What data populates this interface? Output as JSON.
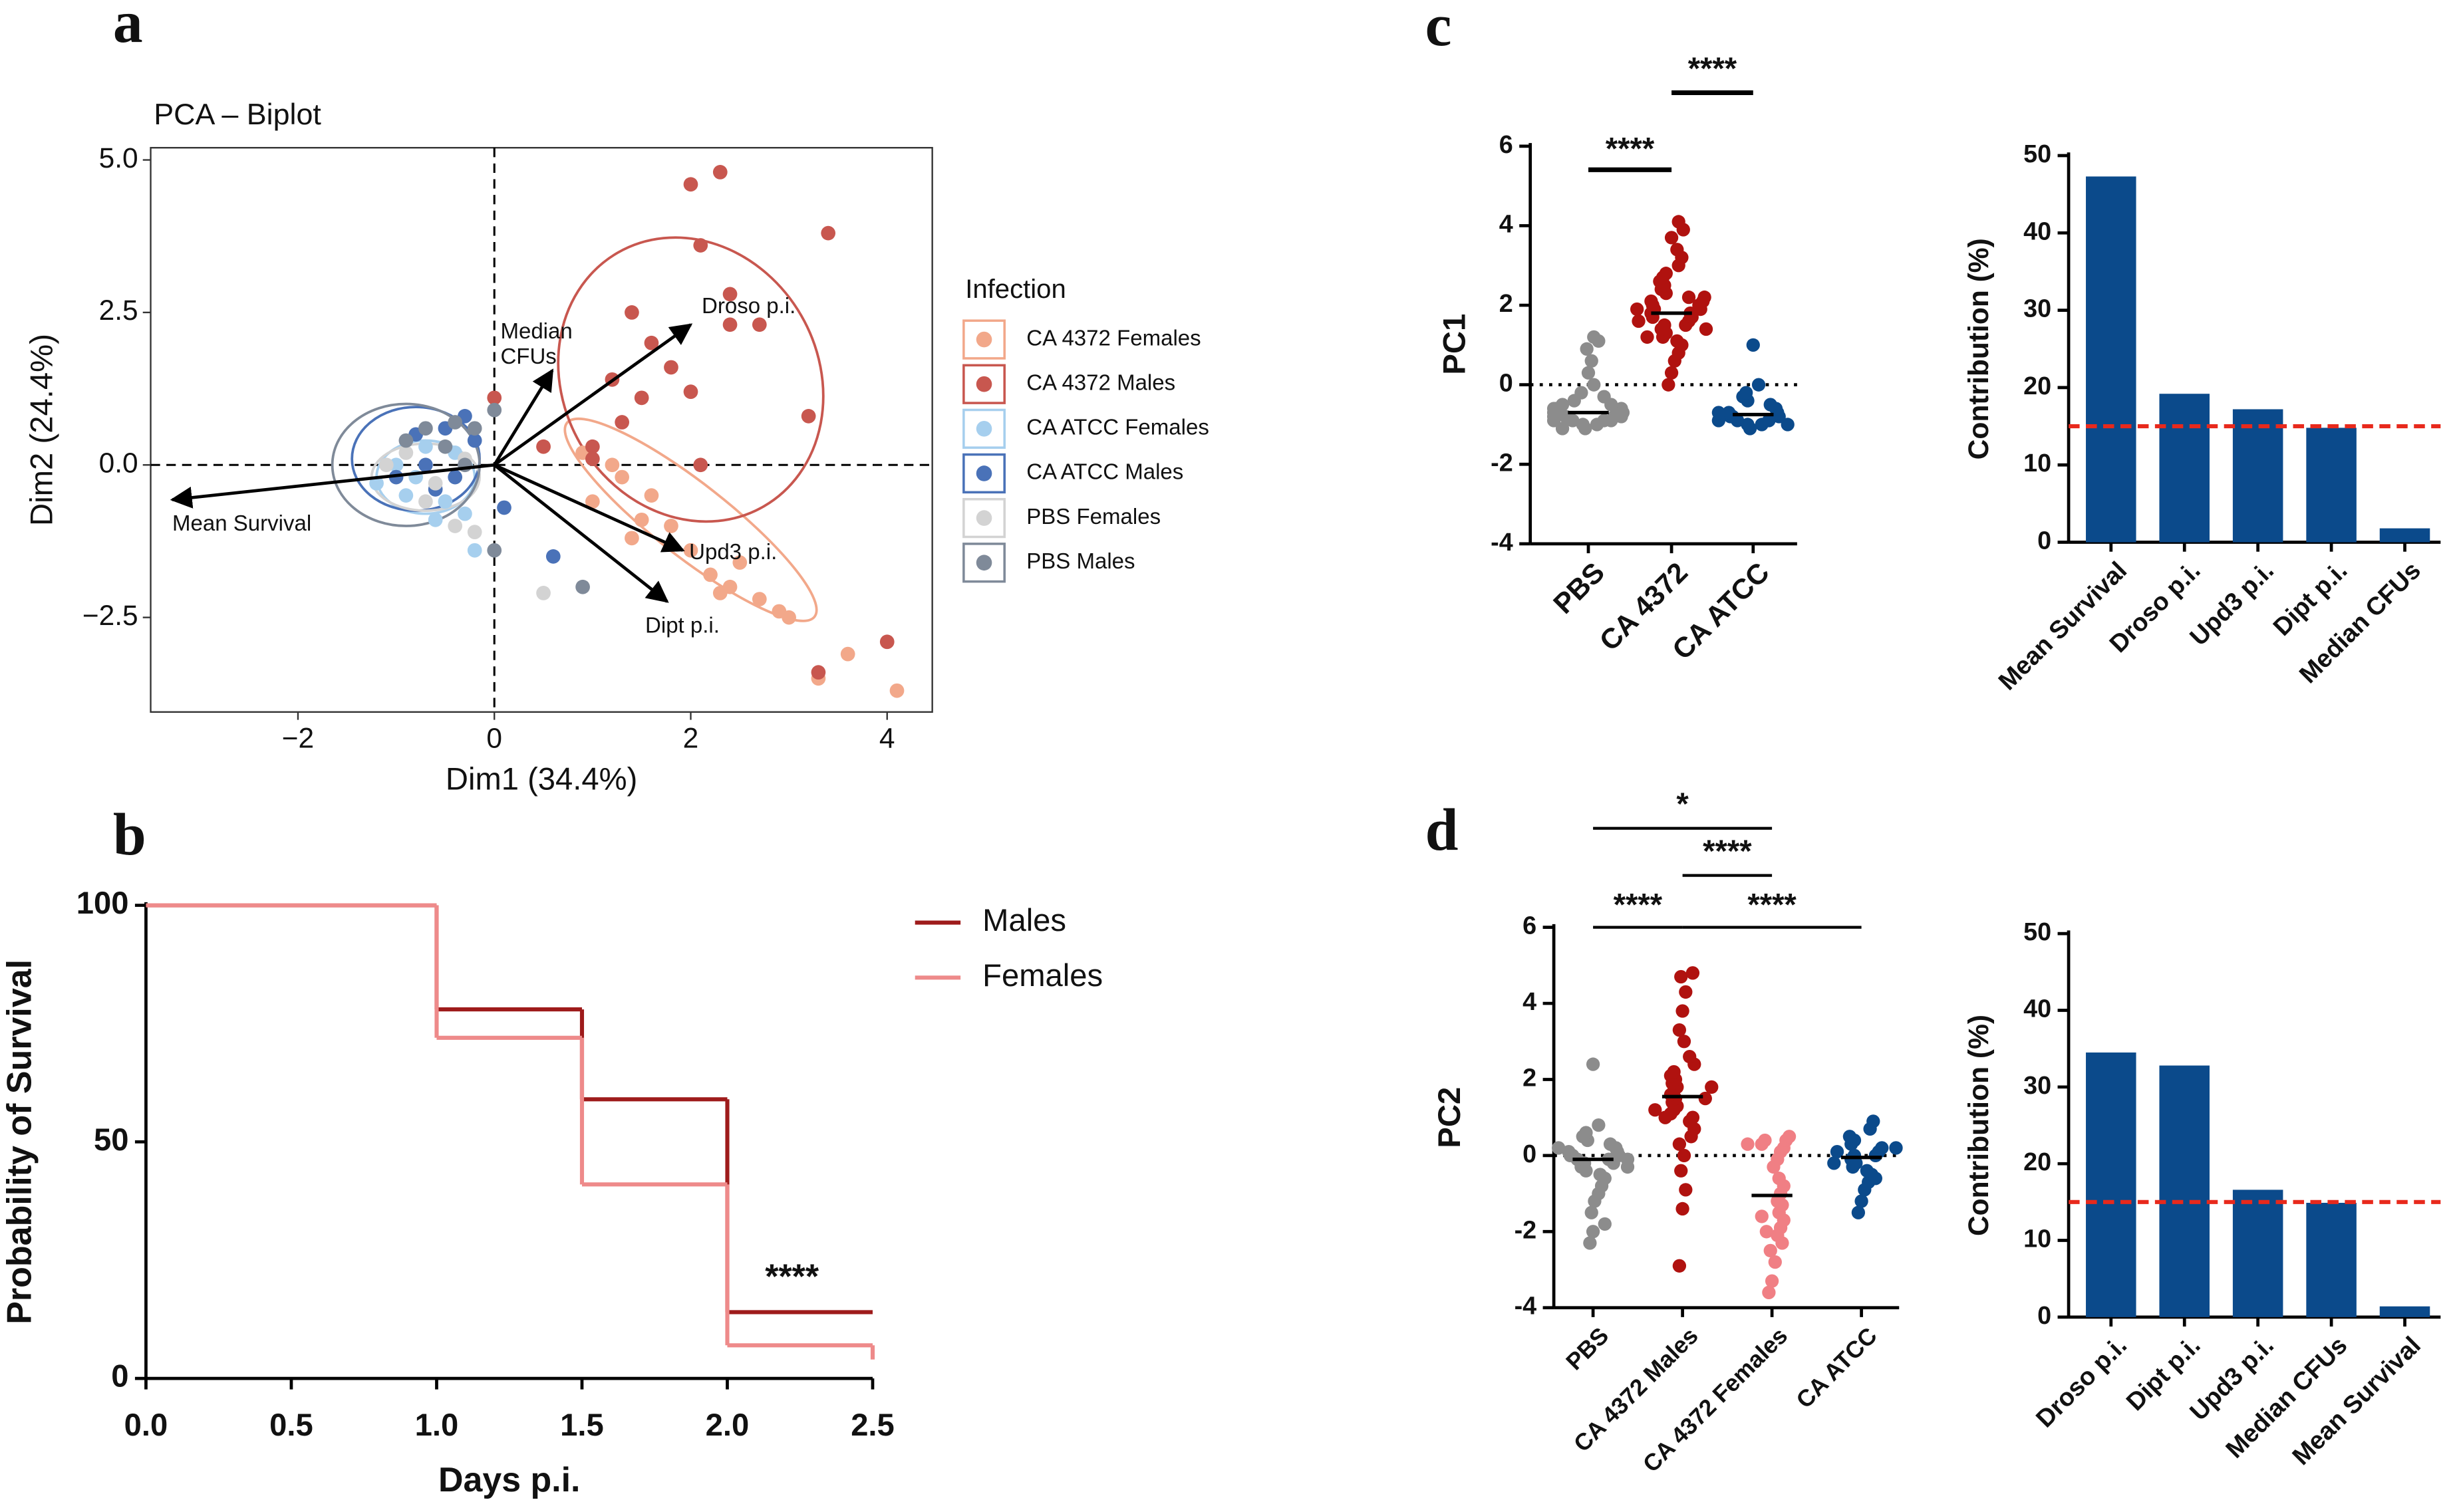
{
  "chart_data": [
    {
      "type": "scatter",
      "label": "a",
      "title": "PCA – Biplot",
      "xlabel": "Dim1 (34.4%)",
      "ylabel": "Dim2 (24.4%)",
      "xlim": [
        -3.5,
        4.46
      ],
      "ylim": [
        -4.05,
        5.2
      ],
      "xticks": [
        {
          "value": -2,
          "label": "−2"
        },
        0,
        2,
        4
      ],
      "yticks": [
        {
          "value": -2.5,
          "label": "−2.5"
        },
        {
          "value": 0,
          "label": "0.0"
        },
        {
          "value": 2.5,
          "label": "2.5"
        },
        {
          "value": 5,
          "label": "5.0"
        }
      ],
      "legend_title": "Infection",
      "series": [
        {
          "name": "CA 4372 Females",
          "color": "#f2a88a",
          "ellipse": [
            2.0,
            -0.9,
            1.6,
            0.6,
            38
          ],
          "x": [
            0.9,
            1.3,
            1.0,
            1.5,
            1.8,
            2.0,
            2.2,
            2.4,
            2.7,
            3.0,
            3.3,
            3.6,
            4.1,
            1.2,
            1.6,
            2.5,
            2.9,
            0.5,
            1.4,
            2.3
          ],
          "y": [
            0.2,
            -0.2,
            -0.6,
            -0.9,
            -1.0,
            -1.4,
            -1.8,
            -2.0,
            -2.2,
            -2.5,
            -3.5,
            -3.1,
            -3.7,
            0.0,
            -0.5,
            -1.6,
            -2.4,
            0.3,
            -1.2,
            -2.1
          ]
        },
        {
          "name": "CA 4372 Males",
          "color": "#c8574f",
          "ellipse": [
            2.0,
            1.4,
            1.3,
            2.4,
            -30
          ],
          "x": [
            2.3,
            2.0,
            3.4,
            2.1,
            1.4,
            2.4,
            2.7,
            1.6,
            1.8,
            1.2,
            1.5,
            2.0,
            1.3,
            1.0,
            2.1,
            0.0,
            3.2,
            4.0,
            3.3,
            1.0,
            2.4,
            0.5
          ],
          "y": [
            4.8,
            4.6,
            3.8,
            3.6,
            2.5,
            2.3,
            2.3,
            2.0,
            1.6,
            1.4,
            1.1,
            1.2,
            0.7,
            0.3,
            0.0,
            1.1,
            0.8,
            -2.9,
            -3.4,
            0.1,
            2.8,
            0.3
          ]
        },
        {
          "name": "CA ATCC Females",
          "color": "#a6cfee",
          "ellipse": [
            -0.7,
            -0.2,
            0.5,
            0.6,
            0
          ],
          "x": [
            -0.8,
            -1.0,
            -0.5,
            -0.3,
            -0.7,
            -1.2,
            -0.4,
            -0.9,
            -0.2,
            -0.6
          ],
          "y": [
            -0.2,
            0.0,
            -0.6,
            -0.8,
            0.3,
            -0.3,
            0.2,
            -0.5,
            -1.4,
            -0.9
          ]
        },
        {
          "name": "CA ATCC Males",
          "color": "#4a72b8",
          "ellipse": [
            -0.8,
            0.1,
            0.65,
            0.85,
            0
          ],
          "x": [
            -0.5,
            -0.3,
            -0.8,
            -0.6,
            -1.0,
            -0.2,
            -0.4,
            0.6,
            0.1,
            -0.7
          ],
          "y": [
            0.6,
            0.8,
            0.5,
            -0.4,
            -0.2,
            0.4,
            -0.2,
            -1.5,
            -0.7,
            0.0
          ]
        },
        {
          "name": "PBS Females",
          "color": "#d3d3d3",
          "ellipse": [
            -0.7,
            -0.2,
            0.55,
            0.55,
            0
          ],
          "x": [
            -0.9,
            -0.6,
            -0.4,
            -0.2,
            -1.1,
            0.5,
            -0.7,
            -0.3
          ],
          "y": [
            0.2,
            -0.3,
            -1.0,
            -1.1,
            0.0,
            -2.1,
            -0.6,
            0.1
          ]
        },
        {
          "name": "PBS Males",
          "color": "#7f8a99",
          "ellipse": [
            -0.9,
            0.0,
            0.75,
            1.0,
            0
          ],
          "x": [
            0.0,
            -0.4,
            -0.2,
            -0.7,
            0.9,
            -0.5,
            0.0,
            -0.9,
            -0.3
          ],
          "y": [
            0.9,
            0.7,
            0.6,
            0.6,
            -2.0,
            0.3,
            -1.4,
            0.4,
            0.0
          ]
        }
      ],
      "arrows": [
        {
          "label": [
            "Mean Survival"
          ],
          "x": -3.28,
          "y": -0.57
        },
        {
          "label": [
            "Median",
            "CFUs"
          ],
          "x": 0.59,
          "y": 1.55
        },
        {
          "label": [
            "Droso p.i."
          ],
          "x": 2.0,
          "y": 2.3
        },
        {
          "label": [
            "Upd3 p.i."
          ],
          "x": 1.92,
          "y": -1.4
        },
        {
          "label": [
            "Dipt p.i."
          ],
          "x": 1.76,
          "y": -2.24
        }
      ]
    },
    {
      "type": "line",
      "label": "b",
      "xlabel": "Days p.i.",
      "ylabel": "Probability of Survival",
      "xlim": [
        0,
        2.5
      ],
      "ylim": [
        0,
        100
      ],
      "xticks": [
        {
          "value": 0,
          "label": "0.0"
        },
        {
          "value": 0.5,
          "label": "0.5"
        },
        {
          "value": 1,
          "label": "1.0"
        },
        {
          "value": 1.5,
          "label": "1.5"
        },
        {
          "value": 2,
          "label": "2.0"
        },
        {
          "value": 2.5,
          "label": "2.5"
        }
      ],
      "yticks": [
        0,
        50,
        100
      ],
      "x": [
        0,
        1,
        1.5,
        2,
        2.5
      ],
      "series": [
        {
          "name": "Males",
          "color": "#9e1b1b",
          "values": [
            100,
            78,
            59,
            14,
            14
          ]
        },
        {
          "name": "Females",
          "color": "#ee8a8a",
          "values": [
            100,
            72,
            41,
            7,
            4
          ]
        }
      ],
      "annotation": {
        "text": "****",
        "x": 2.13,
        "y": 21
      }
    },
    {
      "type": "strip",
      "label": "c",
      "ylabel": "PC1",
      "ylim": [
        -4,
        6
      ],
      "yticks": [
        -4,
        -2,
        0,
        2,
        4,
        6
      ],
      "categories": [
        "PBS",
        "CA 4372",
        "CA ATCC"
      ],
      "colors": [
        "#8c8c8c",
        "#b0120f",
        "#0b4a8b"
      ],
      "means": [
        -0.7,
        1.8,
        -0.75
      ],
      "values": [
        [
          -1.1,
          -1.0,
          -1.0,
          -0.9,
          -0.9,
          -0.9,
          -0.8,
          -0.8,
          -0.8,
          -0.8,
          -0.7,
          -0.7,
          -0.7,
          -0.6,
          -0.6,
          -0.5,
          -0.5,
          -0.4,
          -0.3,
          -0.2,
          0.0,
          0.3,
          0.6,
          0.9,
          1.1,
          1.2,
          -1.1,
          -0.9,
          -0.6,
          -0.8
        ],
        [
          0.0,
          0.3,
          0.6,
          0.8,
          1.0,
          1.1,
          1.2,
          1.3,
          1.4,
          1.5,
          1.5,
          1.6,
          1.7,
          1.7,
          1.8,
          1.8,
          1.9,
          1.9,
          2.0,
          2.0,
          2.1,
          2.2,
          2.3,
          2.4,
          2.5,
          2.6,
          2.7,
          2.8,
          3.0,
          3.2,
          3.4,
          3.7,
          3.9,
          4.1,
          1.6,
          2.1,
          1.4,
          1.9,
          2.2,
          1.2
        ],
        [
          -1.1,
          -1.0,
          -1.0,
          -0.9,
          -0.9,
          -0.8,
          -0.8,
          -0.8,
          -0.7,
          -0.7,
          -0.6,
          -0.5,
          -0.4,
          -0.3,
          -0.2,
          0.0,
          1.0,
          -0.9,
          -0.7,
          -1.0
        ]
      ],
      "comparisons": [
        {
          "groups": [
            0,
            1
          ],
          "label": "****"
        },
        {
          "groups": [
            1,
            2
          ],
          "label": "****"
        }
      ]
    },
    {
      "type": "bar",
      "ylabel": "Contribution (%)",
      "ylim": [
        0,
        50
      ],
      "yticks": [
        0,
        10,
        20,
        30,
        40,
        50
      ],
      "categories": [
        "Mean Survival",
        "Droso p.i.",
        "Upd3 p.i.",
        "Dipt p.i.",
        "Median CFUs"
      ],
      "values": [
        47.3,
        19.2,
        17.2,
        14.8,
        1.8
      ],
      "color": "#0b4a8b",
      "reference": 15,
      "reference_color": "#e8291c"
    },
    {
      "type": "strip",
      "label": "d",
      "ylabel": "PC2",
      "ylim": [
        -4,
        6
      ],
      "yticks": [
        -4,
        -2,
        0,
        2,
        4,
        6
      ],
      "categories": [
        "PBS",
        "CA 4372 Males",
        "CA 4372 Females",
        "CA ATCC"
      ],
      "colors": [
        "#8c8c8c",
        "#b0120f",
        "#f07f84",
        "#0b4a8b"
      ],
      "means": [
        -0.1,
        1.55,
        -1.05,
        -0.05
      ],
      "values": [
        [
          -2.3,
          -2.0,
          -1.8,
          -1.5,
          -1.2,
          -1.0,
          -0.8,
          -0.6,
          -0.5,
          -0.4,
          -0.3,
          -0.2,
          -0.2,
          -0.1,
          -0.1,
          0.0,
          0.0,
          0.0,
          0.1,
          0.1,
          0.2,
          0.3,
          0.4,
          0.5,
          0.6,
          0.8,
          2.4,
          -0.3,
          0.2,
          -0.1
        ],
        [
          -2.9,
          -1.4,
          -0.9,
          -0.4,
          0.0,
          0.3,
          0.5,
          0.7,
          0.9,
          1.0,
          1.1,
          1.2,
          1.3,
          1.4,
          1.5,
          1.6,
          1.7,
          1.8,
          1.9,
          2.0,
          2.1,
          2.2,
          2.4,
          2.6,
          3.0,
          3.3,
          3.8,
          4.3,
          4.7,
          4.8,
          1.5,
          1.0,
          1.8,
          1.2
        ],
        [
          -3.6,
          -3.3,
          -2.8,
          -2.5,
          -2.3,
          -2.1,
          -1.9,
          -1.7,
          -1.5,
          -1.3,
          -1.2,
          -1.0,
          -0.8,
          -0.6,
          -0.3,
          -0.1,
          0.1,
          0.2,
          0.3,
          0.4,
          0.4,
          0.5,
          -2.0,
          -1.6,
          0.3
        ],
        [
          -1.5,
          -1.2,
          -0.9,
          -0.7,
          -0.5,
          -0.4,
          -0.3,
          -0.2,
          -0.1,
          0.0,
          0.0,
          0.1,
          0.2,
          0.3,
          0.4,
          0.5,
          0.7,
          0.9,
          -0.2,
          0.1,
          -0.6,
          0.2
        ]
      ],
      "comparisons": [
        {
          "groups": [
            0,
            2
          ],
          "label": "*"
        },
        {
          "groups": [
            1,
            2
          ],
          "label": "****"
        },
        {
          "groups": [
            0,
            1
          ],
          "label": "****"
        },
        {
          "groups": [
            1,
            3
          ],
          "label": "****"
        }
      ]
    },
    {
      "type": "bar",
      "ylabel": "Contribution (%)",
      "ylim": [
        0,
        50
      ],
      "yticks": [
        0,
        10,
        20,
        30,
        40,
        50
      ],
      "categories": [
        "Droso p.i.",
        "Dipt p.i.",
        "Upd3 p.i.",
        "Median CFUs",
        "Mean Survival"
      ],
      "values": [
        34.5,
        32.8,
        16.6,
        14.9,
        1.4
      ],
      "color": "#0b4a8b",
      "reference": 15,
      "reference_color": "#e8291c"
    }
  ]
}
